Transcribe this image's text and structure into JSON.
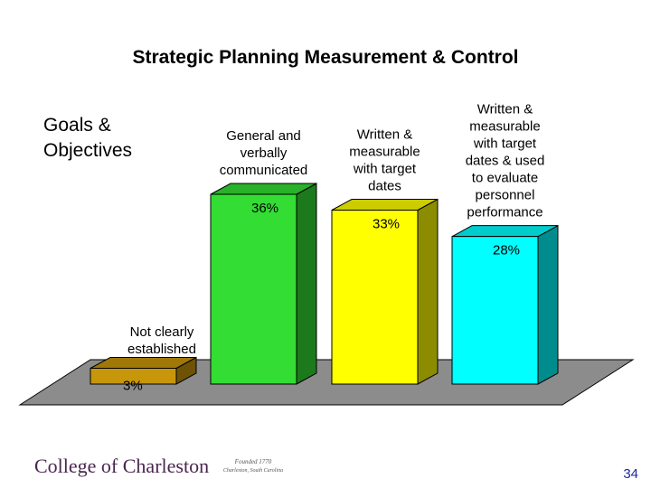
{
  "slide": {
    "title": "Strategic Planning Measurement & Control",
    "goals_label_line1": "Goals &",
    "goals_label_line2": "Objectives",
    "page_number": "34",
    "footer_logo": "College of Charleston",
    "footer_seal_text_line1": "Founded 1770",
    "footer_seal_text_line2": "Charleston, South Carolina"
  },
  "chart_data": {
    "type": "bar",
    "three_d": true,
    "categories": [
      [
        "Not clearly",
        "established"
      ],
      [
        "General and",
        "verbally",
        "communicated"
      ],
      [
        "Written &",
        "measurable",
        "with target",
        "dates"
      ],
      [
        "Written &",
        "measurable",
        "with target",
        "dates & used",
        "to evaluate",
        "personnel",
        "performance"
      ]
    ],
    "values": [
      3,
      36,
      33,
      28
    ],
    "value_labels": [
      "3%",
      "36%",
      "33%",
      "28%"
    ],
    "colors": [
      "#c8960a",
      "#33dd33",
      "#ffff00",
      "#00ffff"
    ],
    "ylim": [
      0,
      36
    ]
  }
}
